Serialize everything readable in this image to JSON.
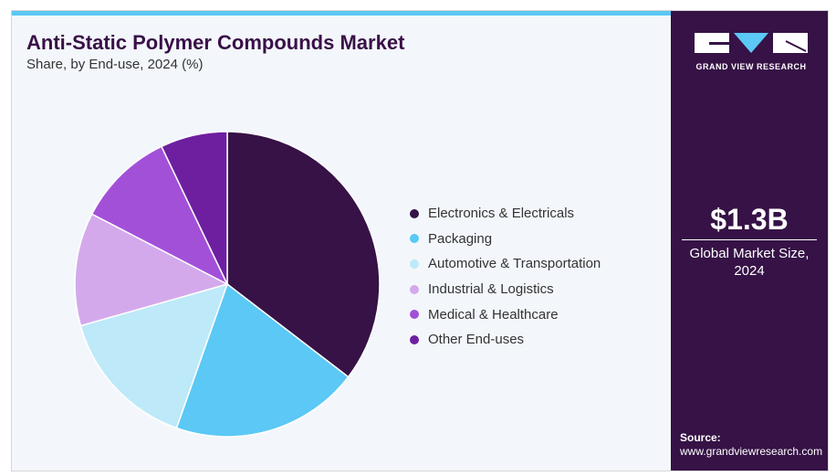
{
  "title": "Anti-Static Polymer Compounds Market",
  "subtitle": "Share, by End-use, 2024 (%)",
  "brand": {
    "name": "GRAND VIEW RESEARCH"
  },
  "market": {
    "value": "$1.3B",
    "caption_line1": "Global Market Size,",
    "caption_line2": "2024"
  },
  "source": {
    "label": "Source:",
    "url": "www.grandviewresearch.com"
  },
  "chart_data": {
    "type": "pie",
    "title": "Anti-Static Polymer Compounds Market",
    "categories": [
      "Electronics & Electricals",
      "Packaging",
      "Automotive & Transportation",
      "Industrial & Logistics",
      "Medical & Healthcare",
      "Other End-uses"
    ],
    "values": [
      35.4,
      20.0,
      15.2,
      12.0,
      10.3,
      7.1
    ],
    "colors": [
      "#361246",
      "#5bc8f5",
      "#bde9f9",
      "#d4a9ec",
      "#a350d9",
      "#6d1fa0"
    ],
    "legend": "right"
  }
}
